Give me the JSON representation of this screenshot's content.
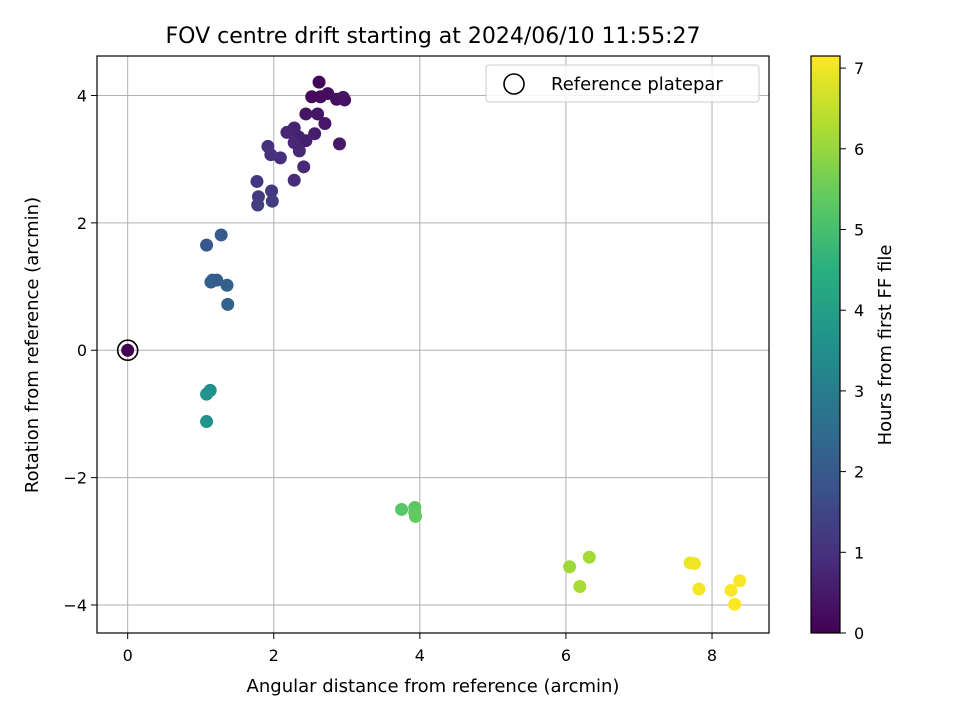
{
  "chart_data": {
    "type": "scatter",
    "title": "FOV centre drift starting at 2024/06/10 11:55:27",
    "xlabel": "Angular distance from reference (arcmin)",
    "ylabel": "Rotation from reference (arcmin)",
    "xlim": [
      -0.42,
      8.78
    ],
    "ylim": [
      -4.44,
      4.62
    ],
    "xticks": [
      0,
      2,
      4,
      6,
      8
    ],
    "yticks": [
      -4,
      -2,
      0,
      2,
      4
    ],
    "xtick_labels": [
      "0",
      "2",
      "4",
      "6",
      "8"
    ],
    "ytick_labels": [
      "−4",
      "−2",
      "0",
      "2",
      "4"
    ],
    "grid": true,
    "legend": {
      "placement": "top-right",
      "label": "Reference platepar"
    },
    "reference_point": {
      "x": 0,
      "y": 0,
      "hours": 0
    },
    "colorbar": {
      "label": "Hours from first FF file",
      "range": [
        0,
        7.15
      ],
      "ticks": [
        0,
        1,
        2,
        3,
        4,
        5,
        6,
        7
      ],
      "tick_labels": [
        "0",
        "1",
        "2",
        "3",
        "4",
        "5",
        "6",
        "7"
      ],
      "colormap": "viridis"
    },
    "points": [
      {
        "x": 2.62,
        "y": 4.21,
        "hours": 0.1
      },
      {
        "x": 2.52,
        "y": 3.98,
        "hours": 0.15
      },
      {
        "x": 2.64,
        "y": 3.98,
        "hours": 0.2
      },
      {
        "x": 2.74,
        "y": 4.03,
        "hours": 0.25
      },
      {
        "x": 2.86,
        "y": 3.94,
        "hours": 0.3
      },
      {
        "x": 2.97,
        "y": 3.93,
        "hours": 0.35
      },
      {
        "x": 2.95,
        "y": 3.97,
        "hours": 0.38
      },
      {
        "x": 2.44,
        "y": 3.71,
        "hours": 0.4
      },
      {
        "x": 2.6,
        "y": 3.71,
        "hours": 0.42
      },
      {
        "x": 2.7,
        "y": 3.56,
        "hours": 0.45
      },
      {
        "x": 2.9,
        "y": 3.24,
        "hours": 0.48
      },
      {
        "x": 2.56,
        "y": 3.4,
        "hours": 0.55
      },
      {
        "x": 2.44,
        "y": 3.29,
        "hours": 0.6
      },
      {
        "x": 2.34,
        "y": 3.35,
        "hours": 0.65
      },
      {
        "x": 2.28,
        "y": 3.49,
        "hours": 0.7
      },
      {
        "x": 2.18,
        "y": 3.42,
        "hours": 0.75
      },
      {
        "x": 2.28,
        "y": 3.26,
        "hours": 0.78
      },
      {
        "x": 2.35,
        "y": 3.13,
        "hours": 0.82
      },
      {
        "x": 2.41,
        "y": 2.88,
        "hours": 0.85
      },
      {
        "x": 2.28,
        "y": 2.67,
        "hours": 0.88
      },
      {
        "x": 2.09,
        "y": 3.02,
        "hours": 0.95
      },
      {
        "x": 1.92,
        "y": 3.2,
        "hours": 1.0
      },
      {
        "x": 1.96,
        "y": 3.07,
        "hours": 1.05
      },
      {
        "x": 1.77,
        "y": 2.65,
        "hours": 1.1
      },
      {
        "x": 1.97,
        "y": 2.5,
        "hours": 1.15
      },
      {
        "x": 1.79,
        "y": 2.41,
        "hours": 1.2
      },
      {
        "x": 1.98,
        "y": 2.34,
        "hours": 1.25
      },
      {
        "x": 1.78,
        "y": 2.28,
        "hours": 1.3
      },
      {
        "x": 1.08,
        "y": 1.65,
        "hours": 1.95
      },
      {
        "x": 1.28,
        "y": 1.81,
        "hours": 2.0
      },
      {
        "x": 1.16,
        "y": 1.1,
        "hours": 2.05
      },
      {
        "x": 1.22,
        "y": 1.1,
        "hours": 2.1
      },
      {
        "x": 1.14,
        "y": 1.07,
        "hours": 2.15
      },
      {
        "x": 1.36,
        "y": 1.02,
        "hours": 2.2
      },
      {
        "x": 1.37,
        "y": 0.72,
        "hours": 2.25
      },
      {
        "x": 1.13,
        "y": -0.63,
        "hours": 3.55
      },
      {
        "x": 1.08,
        "y": -0.69,
        "hours": 3.6
      },
      {
        "x": 1.08,
        "y": -1.12,
        "hours": 3.65
      },
      {
        "x": 3.75,
        "y": -2.5,
        "hours": 5.25
      },
      {
        "x": 3.93,
        "y": -2.47,
        "hours": 5.3
      },
      {
        "x": 3.93,
        "y": -2.55,
        "hours": 5.35
      },
      {
        "x": 3.94,
        "y": -2.61,
        "hours": 5.4
      },
      {
        "x": 6.05,
        "y": -3.4,
        "hours": 6.1
      },
      {
        "x": 6.32,
        "y": -3.25,
        "hours": 6.15
      },
      {
        "x": 6.19,
        "y": -3.71,
        "hours": 6.2
      },
      {
        "x": 7.7,
        "y": -3.34,
        "hours": 6.95
      },
      {
        "x": 7.76,
        "y": -3.35,
        "hours": 7.0
      },
      {
        "x": 7.82,
        "y": -3.75,
        "hours": 7.05
      },
      {
        "x": 8.38,
        "y": -3.62,
        "hours": 7.1
      },
      {
        "x": 8.26,
        "y": -3.77,
        "hours": 7.12
      },
      {
        "x": 8.31,
        "y": -3.99,
        "hours": 7.15
      }
    ]
  }
}
